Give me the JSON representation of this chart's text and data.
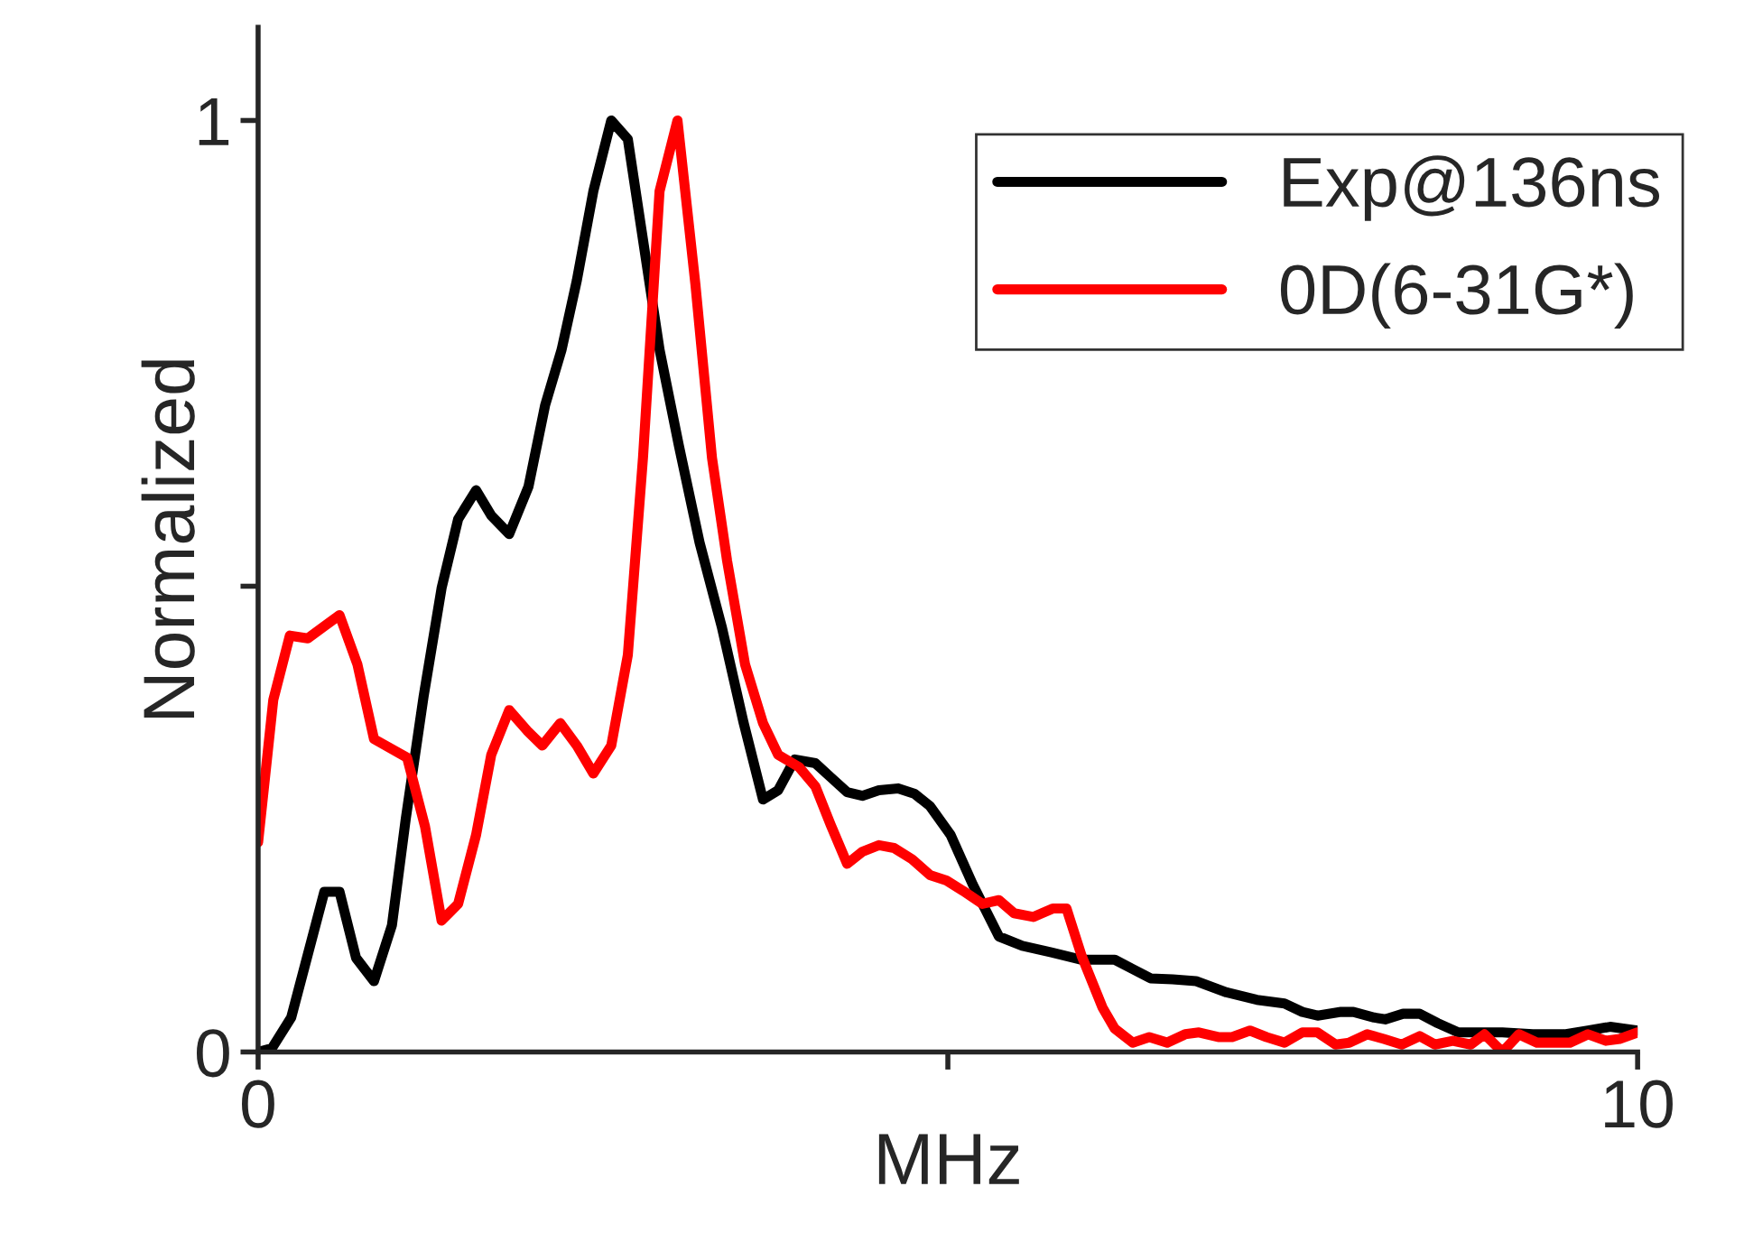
{
  "chart_data": {
    "type": "line",
    "xlabel": "MHz",
    "ylabel": "Normalized",
    "xlim": [
      0,
      10
    ],
    "ylim": [
      0,
      1.1
    ],
    "xticks": [
      0,
      {
        "value": 5,
        "label": null
      },
      10
    ],
    "yticks": [
      0,
      {
        "value": 0.5,
        "label": null
      },
      1
    ],
    "grid": false,
    "legend": "top right",
    "marker": "none",
    "line_style": "solid",
    "series": [
      {
        "name": "Exp@136ns",
        "color": "#000000",
        "x": [
          0,
          0.1,
          0.24,
          0.48,
          0.59,
          0.71,
          0.84,
          0.97,
          1.07,
          1.2,
          1.33,
          1.45,
          1.58,
          1.69,
          1.82,
          1.96,
          2.08,
          2.2,
          2.31,
          2.43,
          2.56,
          2.68,
          2.91,
          3.05,
          3.2,
          3.36,
          3.52,
          3.66,
          3.77,
          3.89,
          4.04,
          4.15,
          4.27,
          4.38,
          4.5,
          4.64,
          4.76,
          4.87,
          5.02,
          5.18,
          5.37,
          5.54,
          5.75,
          5.97,
          6.21,
          6.34,
          6.47,
          6.63,
          6.8,
          7.02,
          7.24,
          7.44,
          7.57,
          7.68,
          7.85,
          7.94,
          8.09,
          8.17,
          8.3,
          8.42,
          8.55,
          8.7,
          8.85,
          9.02,
          9.24,
          9.47,
          9.64,
          9.8,
          10.0
        ],
        "values": [
          0,
          0.004,
          0.037,
          0.172,
          0.172,
          0.101,
          0.076,
          0.136,
          0.25,
          0.382,
          0.498,
          0.572,
          0.603,
          0.576,
          0.556,
          0.607,
          0.694,
          0.754,
          0.828,
          0.924,
          1.0,
          0.98,
          0.754,
          0.651,
          0.547,
          0.457,
          0.353,
          0.271,
          0.281,
          0.314,
          0.31,
          0.295,
          0.279,
          0.275,
          0.281,
          0.283,
          0.277,
          0.264,
          0.233,
          0.18,
          0.124,
          0.114,
          0.107,
          0.099,
          0.099,
          0.089,
          0.079,
          0.078,
          0.076,
          0.064,
          0.056,
          0.052,
          0.043,
          0.039,
          0.043,
          0.043,
          0.037,
          0.035,
          0.041,
          0.041,
          0.031,
          0.021,
          0.021,
          0.021,
          0.019,
          0.019,
          0.023,
          0.027,
          0.023
        ]
      },
      {
        "name": "0D(6-31G*)",
        "color": "#ff0000",
        "x": [
          0,
          0.11,
          0.23,
          0.36,
          0.48,
          0.59,
          0.72,
          0.84,
          1.08,
          1.21,
          1.33,
          1.45,
          1.58,
          1.69,
          1.82,
          1.95,
          2.06,
          2.19,
          2.31,
          2.43,
          2.56,
          2.68,
          2.79,
          2.91,
          3.04,
          3.17,
          3.29,
          3.4,
          3.53,
          3.66,
          3.77,
          3.92,
          4.04,
          4.15,
          4.27,
          4.38,
          4.5,
          4.61,
          4.74,
          4.87,
          4.99,
          5.11,
          5.25,
          5.37,
          5.48,
          5.62,
          5.76,
          5.86,
          5.97,
          6.12,
          6.21,
          6.34,
          6.46,
          6.59,
          6.72,
          6.82,
          6.96,
          7.06,
          7.19,
          7.31,
          7.44,
          7.57,
          7.68,
          7.81,
          7.91,
          8.04,
          8.16,
          8.29,
          8.42,
          8.53,
          8.66,
          8.79,
          8.89,
          9.02,
          9.14,
          9.27,
          9.4,
          9.51,
          9.64,
          9.77,
          9.87,
          10.0
        ],
        "values": [
          0.225,
          0.378,
          0.447,
          0.444,
          0.457,
          0.469,
          0.416,
          0.336,
          0.316,
          0.242,
          0.141,
          0.159,
          0.233,
          0.319,
          0.367,
          0.345,
          0.329,
          0.353,
          0.329,
          0.299,
          0.329,
          0.426,
          0.638,
          0.924,
          1.0,
          0.824,
          0.638,
          0.527,
          0.416,
          0.353,
          0.319,
          0.306,
          0.285,
          0.244,
          0.202,
          0.215,
          0.222,
          0.219,
          0.207,
          0.19,
          0.184,
          0.173,
          0.159,
          0.163,
          0.149,
          0.145,
          0.154,
          0.154,
          0.103,
          0.048,
          0.025,
          0.01,
          0.016,
          0.01,
          0.019,
          0.021,
          0.016,
          0.016,
          0.023,
          0.016,
          0.01,
          0.021,
          0.021,
          0.008,
          0.01,
          0.019,
          0.014,
          0.008,
          0.017,
          0.008,
          0.012,
          0.008,
          0.019,
          0,
          0.019,
          0.01,
          0.01,
          0.01,
          0.019,
          0.012,
          0.014,
          0.021
        ]
      }
    ]
  }
}
